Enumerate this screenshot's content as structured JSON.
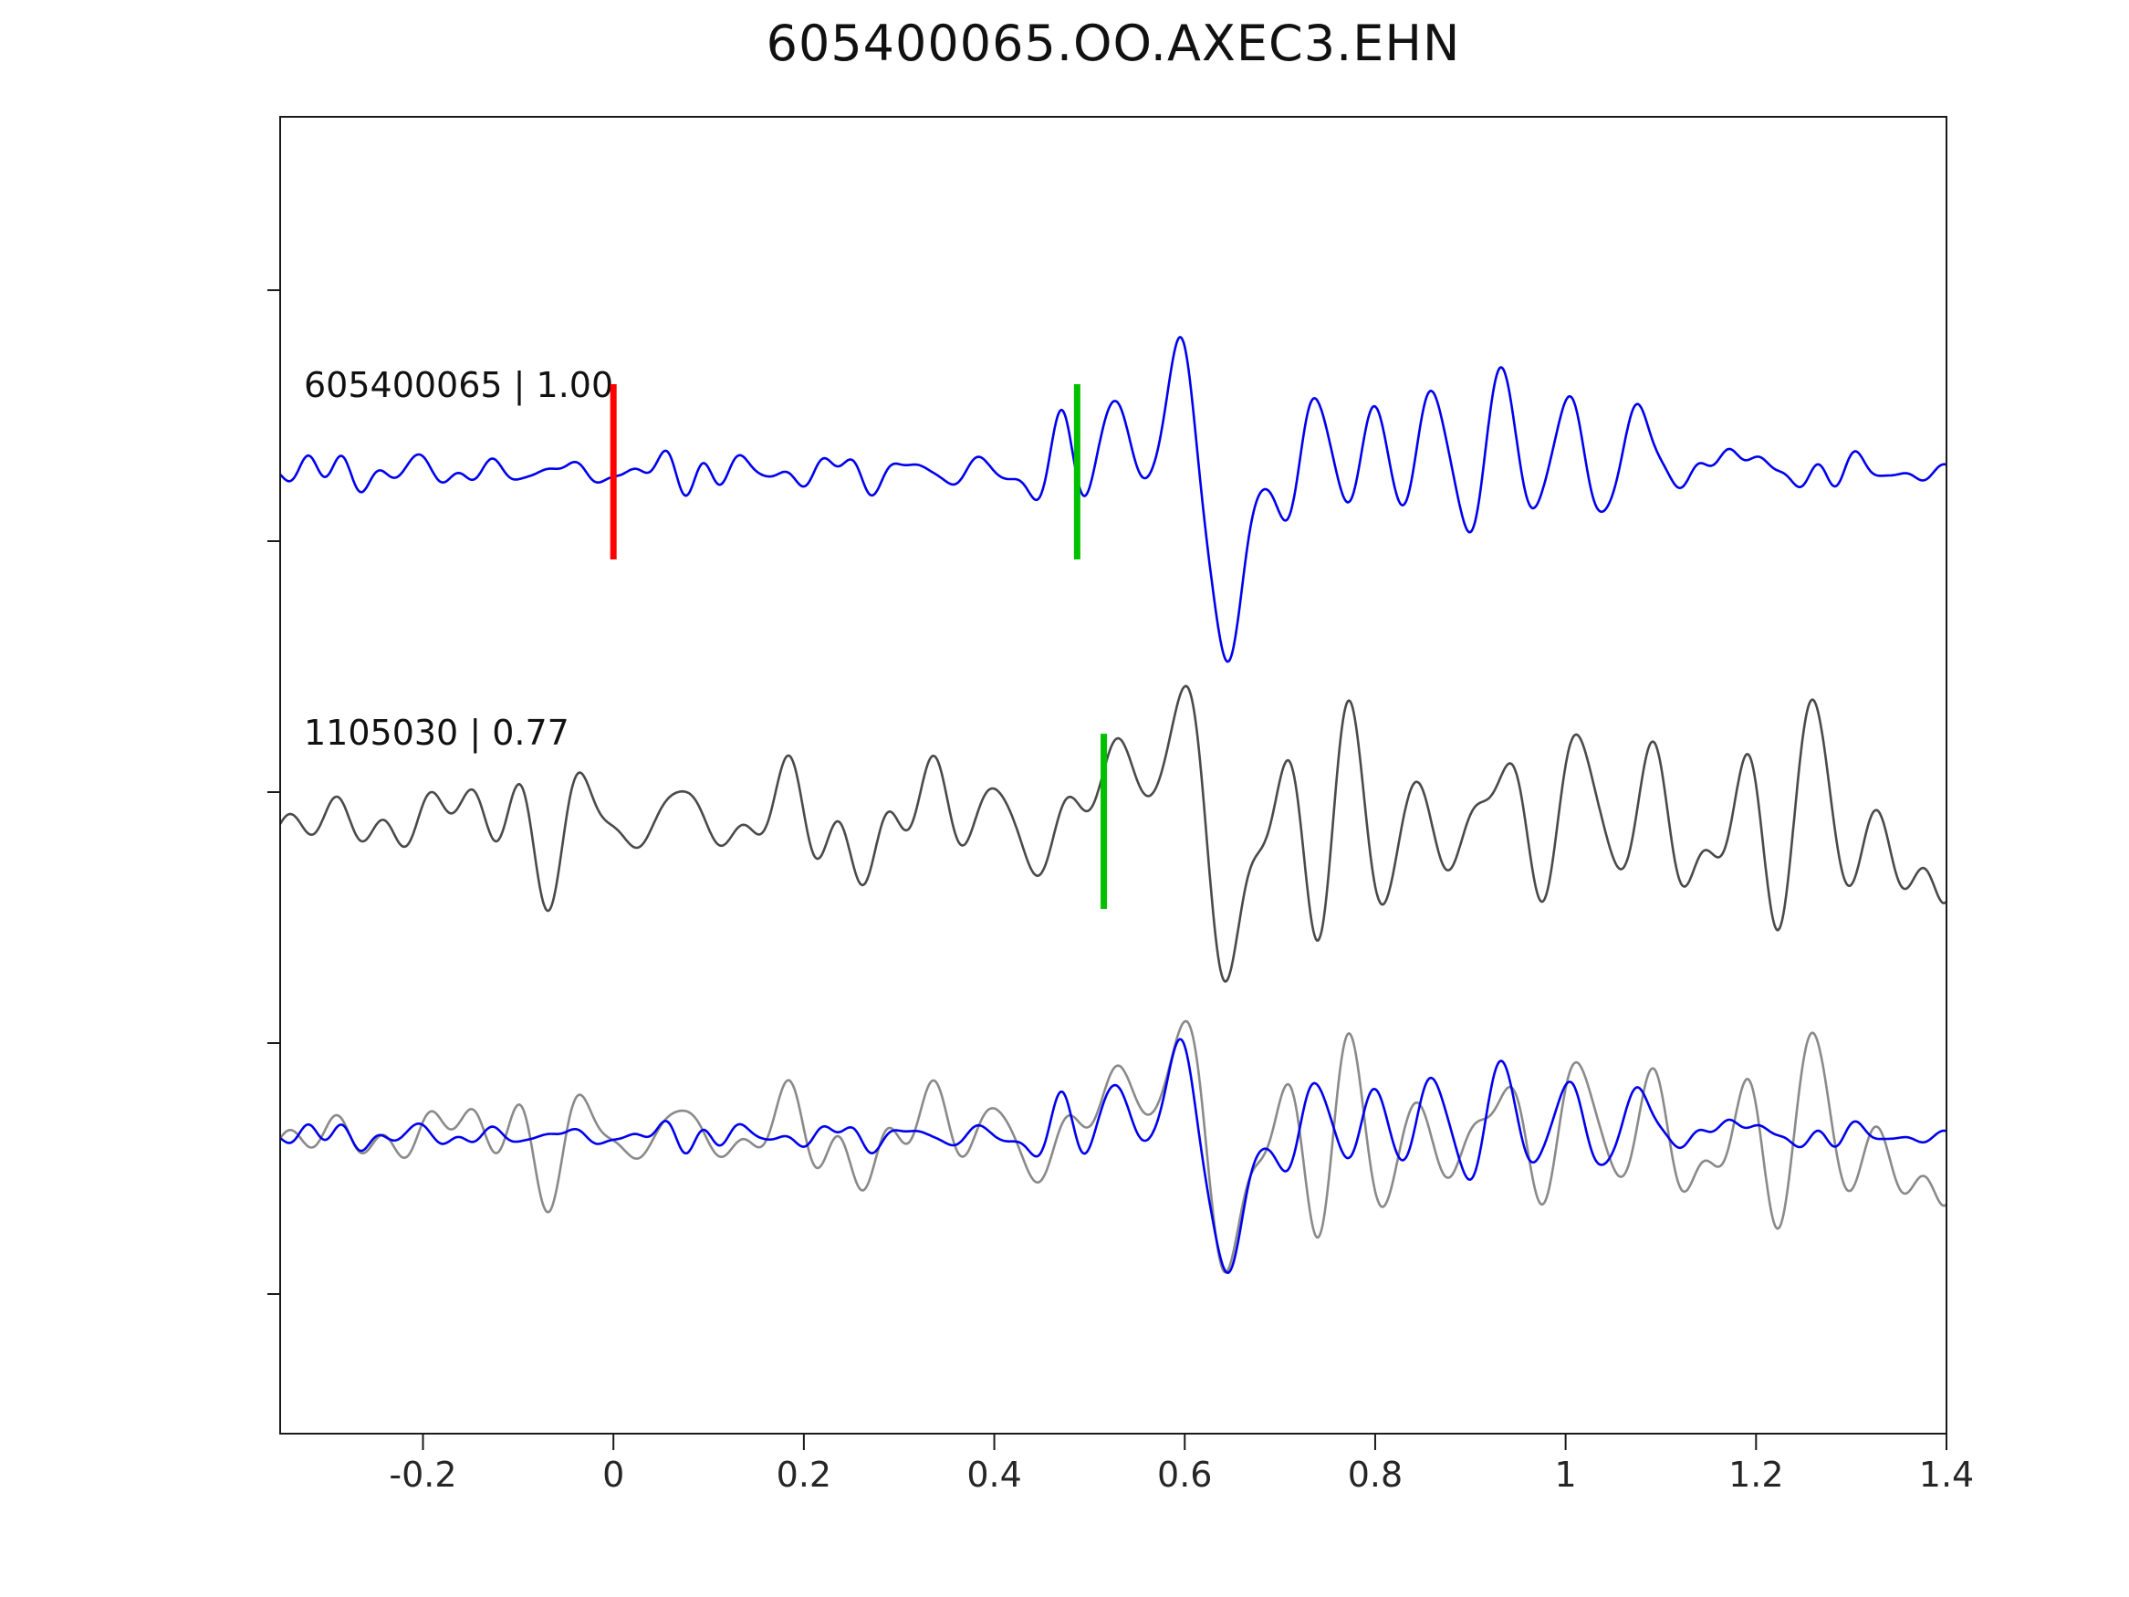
{
  "title": "605400065.OO.AXEC3.EHN",
  "trace_labels": {
    "trace1": "605400065 | 1.00",
    "trace2": "1105030 | 0.77"
  },
  "colors": {
    "trace1_blue": "#0000ee",
    "trace2_gray": "#4a4a4a",
    "overlay_gray": "#8a8a8a",
    "marker_red": "#ff0000",
    "marker_green": "#00c000",
    "axis": "#1a1a1a",
    "tick_text": "#262626"
  },
  "chart_data": {
    "type": "line",
    "title": "605400065.OO.AXEC3.EHN",
    "xlabel": "",
    "ylabel": "",
    "x_range": [
      -0.35,
      1.4
    ],
    "x_tick_values": [
      -0.2,
      0,
      0.2,
      0.4,
      0.6,
      0.8,
      1,
      1.2,
      1.4
    ],
    "x_tick_labels": [
      "-0.2",
      "0",
      "0.2",
      "0.4",
      "0.6",
      "0.8",
      "1",
      "1.2",
      "1.4"
    ],
    "grid": false,
    "legend": false,
    "series": [
      {
        "name": "605400065",
        "label": "605400065 | 1.00",
        "correlation": 1.0,
        "row": 1,
        "color_key": "trace1_blue",
        "markers": [
          {
            "t": 0.0,
            "color": "#ff0000",
            "kind": "reference-pick"
          },
          {
            "t": 0.487,
            "color": "#00c000",
            "kind": "arrival-pick"
          }
        ],
        "synthesis": {
          "noise": {
            "seed": 11,
            "n": 10,
            "f": [
              7,
              26
            ],
            "amp": 0.07
          },
          "noise2": {
            "seed": 29,
            "n": 8,
            "f": [
              14,
              32
            ],
            "amp": 0.04
          },
          "bumps": [
            [
              0.445,
              -0.18,
              0.014
            ],
            [
              0.47,
              0.4,
              0.016
            ],
            [
              0.498,
              -0.45,
              0.017
            ],
            [
              0.528,
              0.72,
              0.019
            ],
            [
              0.562,
              -0.52,
              0.019
            ],
            [
              0.598,
              1.15,
              0.022
            ],
            [
              0.64,
              -1.22,
              0.027
            ],
            [
              0.68,
              0.42,
              0.018
            ],
            [
              0.707,
              -0.52,
              0.018
            ],
            [
              0.735,
              0.66,
              0.018
            ],
            [
              0.767,
              -0.46,
              0.018
            ],
            [
              0.797,
              0.62,
              0.018
            ],
            [
              0.83,
              -0.48,
              0.018
            ],
            [
              0.862,
              0.66,
              0.018
            ],
            [
              0.897,
              -0.5,
              0.019
            ],
            [
              0.932,
              0.68,
              0.019
            ],
            [
              0.967,
              -0.46,
              0.019
            ],
            [
              1.002,
              0.6,
              0.019
            ],
            [
              1.04,
              -0.4,
              0.02
            ],
            [
              1.077,
              0.46,
              0.02
            ],
            [
              1.117,
              -0.22,
              0.02
            ],
            [
              1.152,
              0.18,
              0.022
            ]
          ]
        }
      },
      {
        "name": "1105030",
        "label": "1105030 | 0.77",
        "correlation": 0.77,
        "row": 2,
        "color_key": "trace2_gray",
        "markers": [
          {
            "t": 0.515,
            "color": "#00c000",
            "kind": "arrival-pick"
          }
        ],
        "synthesis": {
          "noise": {
            "seed": 41,
            "n": 10,
            "f": [
              8,
              22
            ],
            "amp": 0.22
          },
          "noise2": {
            "seed": 57,
            "n": 8,
            "f": [
              3,
              7
            ],
            "amp": 0.12
          },
          "bumps": [
            [
              0.535,
              0.55,
              0.02
            ],
            [
              0.568,
              -0.46,
              0.02
            ],
            [
              0.602,
              1.12,
              0.024
            ],
            [
              0.65,
              -0.95,
              0.03
            ],
            [
              0.7,
              0.45,
              0.02
            ],
            [
              0.738,
              -0.42,
              0.02
            ],
            [
              0.776,
              0.52,
              0.02
            ],
            [
              0.815,
              -0.52,
              0.02
            ],
            [
              0.855,
              0.44,
              0.02
            ],
            [
              0.895,
              -0.48,
              0.022
            ],
            [
              0.935,
              0.56,
              0.022
            ],
            [
              0.975,
              -0.44,
              0.022
            ],
            [
              1.015,
              0.5,
              0.022
            ],
            [
              1.055,
              -0.46,
              0.022
            ],
            [
              1.095,
              0.52,
              0.022
            ],
            [
              1.135,
              -0.62,
              0.024
            ],
            [
              1.175,
              0.8,
              0.025
            ],
            [
              1.215,
              -0.85,
              0.027
            ],
            [
              1.255,
              0.9,
              0.027
            ],
            [
              1.295,
              -0.98,
              0.029
            ],
            [
              1.335,
              0.72,
              0.027
            ],
            [
              1.372,
              -0.5,
              0.025
            ]
          ]
        }
      },
      {
        "name": "overlay",
        "label": "",
        "row": 3,
        "components": [
          {
            "series": 1,
            "scale": 0.85,
            "color_key": "overlay_gray"
          },
          {
            "series": 0,
            "scale": 0.72,
            "color_key": "trace1_blue"
          }
        ]
      }
    ]
  }
}
